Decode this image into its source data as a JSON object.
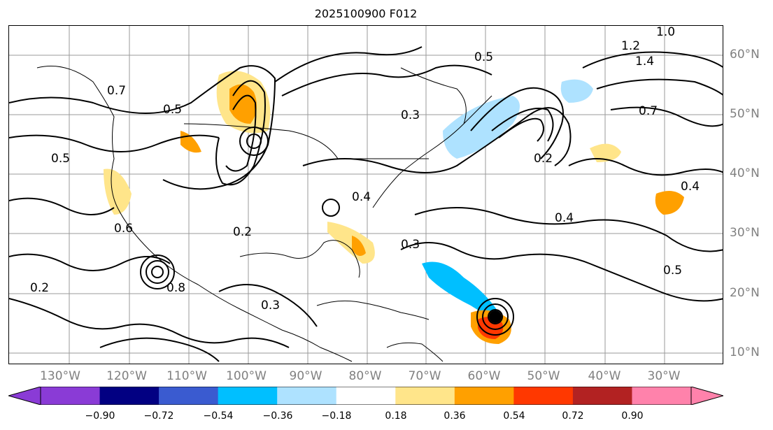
{
  "title": "2025100900 F012",
  "lon_labels": [
    "130°W",
    "120°W",
    "110°W",
    "100°W",
    "90°W",
    "80°W",
    "70°W",
    "60°W",
    "50°W",
    "40°W",
    "30°W"
  ],
  "lat_labels": [
    "60°N",
    "50°N",
    "40°N",
    "30°N",
    "20°N",
    "10°N"
  ],
  "colorbar": {
    "ticks": [
      "−0.90",
      "−0.72",
      "−0.54",
      "−0.36",
      "−0.18",
      "0.18",
      "0.36",
      "0.54",
      "0.72",
      "0.90"
    ],
    "colors": [
      "#8a3bd6",
      "#020082",
      "#3a5bd0",
      "#00bfff",
      "#aee2ff",
      "#ffffff",
      "#ffe58a",
      "#ffa000",
      "#ff3800",
      "#b22222",
      "#ff82ab"
    ],
    "min_extend_color": "#8a3bd6",
    "max_extend_color": "#ff82ab"
  },
  "contour_labels": [
    "0.2",
    "0.3",
    "0.4",
    "0.5",
    "0.6",
    "0.7",
    "0.8",
    "1.0",
    "1.2",
    "1.4",
    "0.3",
    "0.5",
    "0.2",
    "0.4",
    "0.3",
    "0.5",
    "0.7",
    "0.4",
    "0.2",
    "0.5"
  ],
  "colors": {
    "contour": "#000000",
    "grid": "#808080",
    "coast": "#000000"
  }
}
